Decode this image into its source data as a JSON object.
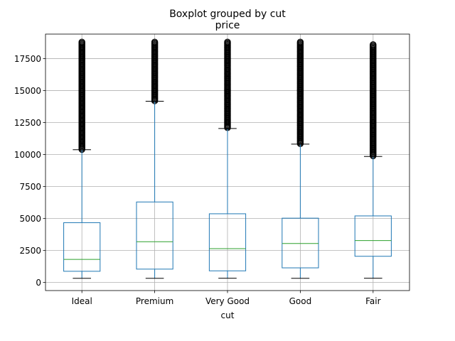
{
  "chart_data": {
    "type": "boxplot",
    "suptitle": "Boxplot grouped by cut",
    "title": "price",
    "xlabel": "cut",
    "ylabel": "",
    "ylim": [
      -630,
      19420
    ],
    "yticks": [
      0,
      2500,
      5000,
      7500,
      10000,
      12500,
      15000,
      17500
    ],
    "ytick_labels": [
      "0",
      "2500",
      "5000",
      "7500",
      "10000",
      "12500",
      "15000",
      "17500"
    ],
    "grid": true,
    "colors": {
      "box": "#1f77b4",
      "median": "#2ca02c",
      "whisker_cap": "#000000",
      "outlier": "#000000",
      "grid": "#b0b0b0"
    },
    "categories": [
      "Ideal",
      "Premium",
      "Very Good",
      "Good",
      "Fair"
    ],
    "boxes": [
      {
        "category": "Ideal",
        "whisker_low": 326,
        "q1": 878,
        "median": 1810,
        "q3": 4678,
        "whisker_high": 10380,
        "outlier_min": 10400,
        "outlier_max": 18800
      },
      {
        "category": "Premium",
        "whisker_low": 326,
        "q1": 1046,
        "median": 3185,
        "q3": 6296,
        "whisker_high": 14170,
        "outlier_min": 14200,
        "outlier_max": 18800
      },
      {
        "category": "Very Good",
        "whisker_low": 336,
        "q1": 912,
        "median": 2648,
        "q3": 5373,
        "whisker_high": 12040,
        "outlier_min": 12100,
        "outlier_max": 18800
      },
      {
        "category": "Good",
        "whisker_low": 327,
        "q1": 1145,
        "median": 3050,
        "q3": 5029,
        "whisker_high": 10820,
        "outlier_min": 10850,
        "outlier_max": 18800
      },
      {
        "category": "Fair",
        "whisker_low": 337,
        "q1": 2050,
        "median": 3282,
        "q3": 5206,
        "whisker_high": 9850,
        "outlier_min": 9900,
        "outlier_max": 18600
      }
    ]
  }
}
